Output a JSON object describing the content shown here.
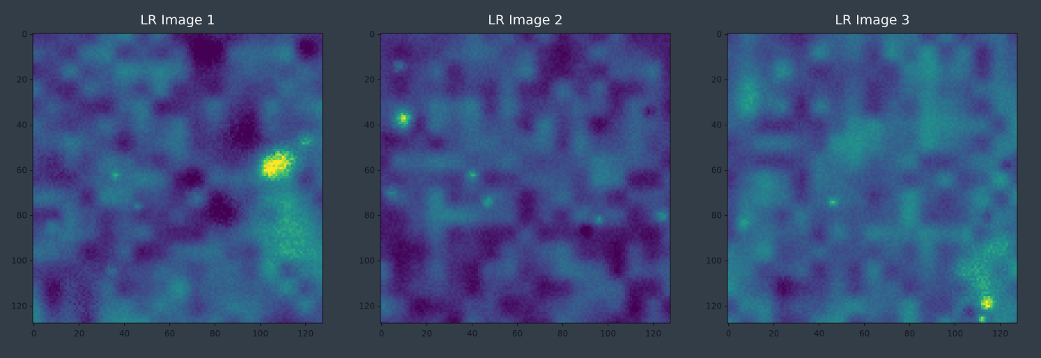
{
  "figure": {
    "background": "#333d47"
  },
  "chart_data": [
    {
      "type": "heatmap",
      "title": "LR Image 1",
      "xlabel": "",
      "ylabel": "",
      "colormap": "viridis",
      "grid": false,
      "xlim": [
        0,
        127
      ],
      "ylim": [
        127,
        0
      ],
      "xticks": [
        0,
        20,
        40,
        60,
        80,
        100,
        120
      ],
      "yticks": [
        0,
        20,
        40,
        60,
        80,
        100,
        120
      ],
      "xtick_labels": [
        "0",
        "20",
        "40",
        "60",
        "80",
        "100",
        "120"
      ],
      "ytick_labels": [
        "0",
        "20",
        "40",
        "60",
        "80",
        "100",
        "120"
      ],
      "size": [
        128,
        128
      ],
      "seed": 11,
      "features": [
        {
          "x": 110,
          "y": 55,
          "r": 8,
          "v": 0.55
        },
        {
          "x": 104,
          "y": 60,
          "r": 5,
          "v": 0.5
        },
        {
          "x": 120,
          "y": 47,
          "r": 4,
          "v": 0.4
        },
        {
          "x": 108,
          "y": 80,
          "r": 16,
          "v": 0.2
        },
        {
          "x": 112,
          "y": 100,
          "r": 14,
          "v": 0.18
        },
        {
          "x": 84,
          "y": 78,
          "r": 9,
          "v": -0.32
        },
        {
          "x": 92,
          "y": 44,
          "r": 9,
          "v": -0.28
        },
        {
          "x": 78,
          "y": 6,
          "r": 9,
          "v": -0.28
        },
        {
          "x": 20,
          "y": 118,
          "r": 14,
          "v": -0.26
        },
        {
          "x": 10,
          "y": 58,
          "r": 12,
          "v": -0.2
        },
        {
          "x": 120,
          "y": 4,
          "r": 6,
          "v": -0.25
        },
        {
          "x": 70,
          "y": 64,
          "r": 6,
          "v": -0.18
        },
        {
          "x": 36,
          "y": 62,
          "r": 2,
          "v": 0.28
        },
        {
          "x": 46,
          "y": 76,
          "r": 2,
          "v": 0.25
        },
        {
          "x": 34,
          "y": 104,
          "r": 3,
          "v": 0.22
        },
        {
          "x": 8,
          "y": 84,
          "r": 3,
          "v": 0.2
        }
      ],
      "base": 0.34
    },
    {
      "type": "heatmap",
      "title": "LR Image 2",
      "xlabel": "",
      "ylabel": "",
      "colormap": "viridis",
      "grid": false,
      "xlim": [
        0,
        127
      ],
      "ylim": [
        127,
        0
      ],
      "xticks": [
        0,
        20,
        40,
        60,
        80,
        100,
        120
      ],
      "yticks": [
        0,
        20,
        40,
        60,
        80,
        100,
        120
      ],
      "xtick_labels": [
        "0",
        "20",
        "40",
        "60",
        "80",
        "100",
        "120"
      ],
      "ytick_labels": [
        "0",
        "20",
        "40",
        "60",
        "80",
        "100",
        "120"
      ],
      "size": [
        128,
        128
      ],
      "seed": 23,
      "features": [
        {
          "x": 10,
          "y": 37,
          "r": 4,
          "v": 0.5
        },
        {
          "x": 8,
          "y": 14,
          "r": 3,
          "v": 0.35
        },
        {
          "x": 4,
          "y": 44,
          "r": 6,
          "v": -0.15
        },
        {
          "x": 40,
          "y": 62,
          "r": 2,
          "v": 0.3
        },
        {
          "x": 47,
          "y": 74,
          "r": 2,
          "v": 0.32
        },
        {
          "x": 124,
          "y": 80,
          "r": 3,
          "v": 0.3
        },
        {
          "x": 96,
          "y": 82,
          "r": 2,
          "v": 0.3
        },
        {
          "x": 90,
          "y": 86,
          "r": 3,
          "v": -0.2
        },
        {
          "x": 118,
          "y": 34,
          "r": 3,
          "v": -0.22
        },
        {
          "x": 4,
          "y": 70,
          "r": 3,
          "v": 0.25
        }
      ],
      "base": 0.27
    },
    {
      "type": "heatmap",
      "title": "LR Image 3",
      "xlabel": "",
      "ylabel": "",
      "colormap": "viridis",
      "grid": false,
      "xlim": [
        0,
        127
      ],
      "ylim": [
        127,
        0
      ],
      "xticks": [
        0,
        20,
        40,
        60,
        80,
        100,
        120
      ],
      "yticks": [
        0,
        20,
        40,
        60,
        80,
        100,
        120
      ],
      "xtick_labels": [
        "0",
        "20",
        "40",
        "60",
        "80",
        "100",
        "120"
      ],
      "ytick_labels": [
        "0",
        "20",
        "40",
        "60",
        "80",
        "100",
        "120"
      ],
      "size": [
        128,
        128
      ],
      "seed": 37,
      "features": [
        {
          "x": 110,
          "y": 108,
          "r": 16,
          "v": 0.26
        },
        {
          "x": 120,
          "y": 92,
          "r": 8,
          "v": 0.22
        },
        {
          "x": 114,
          "y": 119,
          "r": 3,
          "v": 0.5
        },
        {
          "x": 112,
          "y": 126,
          "r": 2,
          "v": 0.45
        },
        {
          "x": 106,
          "y": 122,
          "r": 3,
          "v": -0.3
        },
        {
          "x": 122,
          "y": 58,
          "r": 3,
          "v": -0.3
        },
        {
          "x": 114,
          "y": 80,
          "r": 3,
          "v": -0.25
        },
        {
          "x": 14,
          "y": 26,
          "r": 8,
          "v": 0.18
        },
        {
          "x": 46,
          "y": 74,
          "r": 2,
          "v": 0.3
        },
        {
          "x": 6,
          "y": 84,
          "r": 3,
          "v": 0.2
        },
        {
          "x": 24,
          "y": 110,
          "r": 6,
          "v": -0.12
        }
      ],
      "base": 0.36
    }
  ]
}
